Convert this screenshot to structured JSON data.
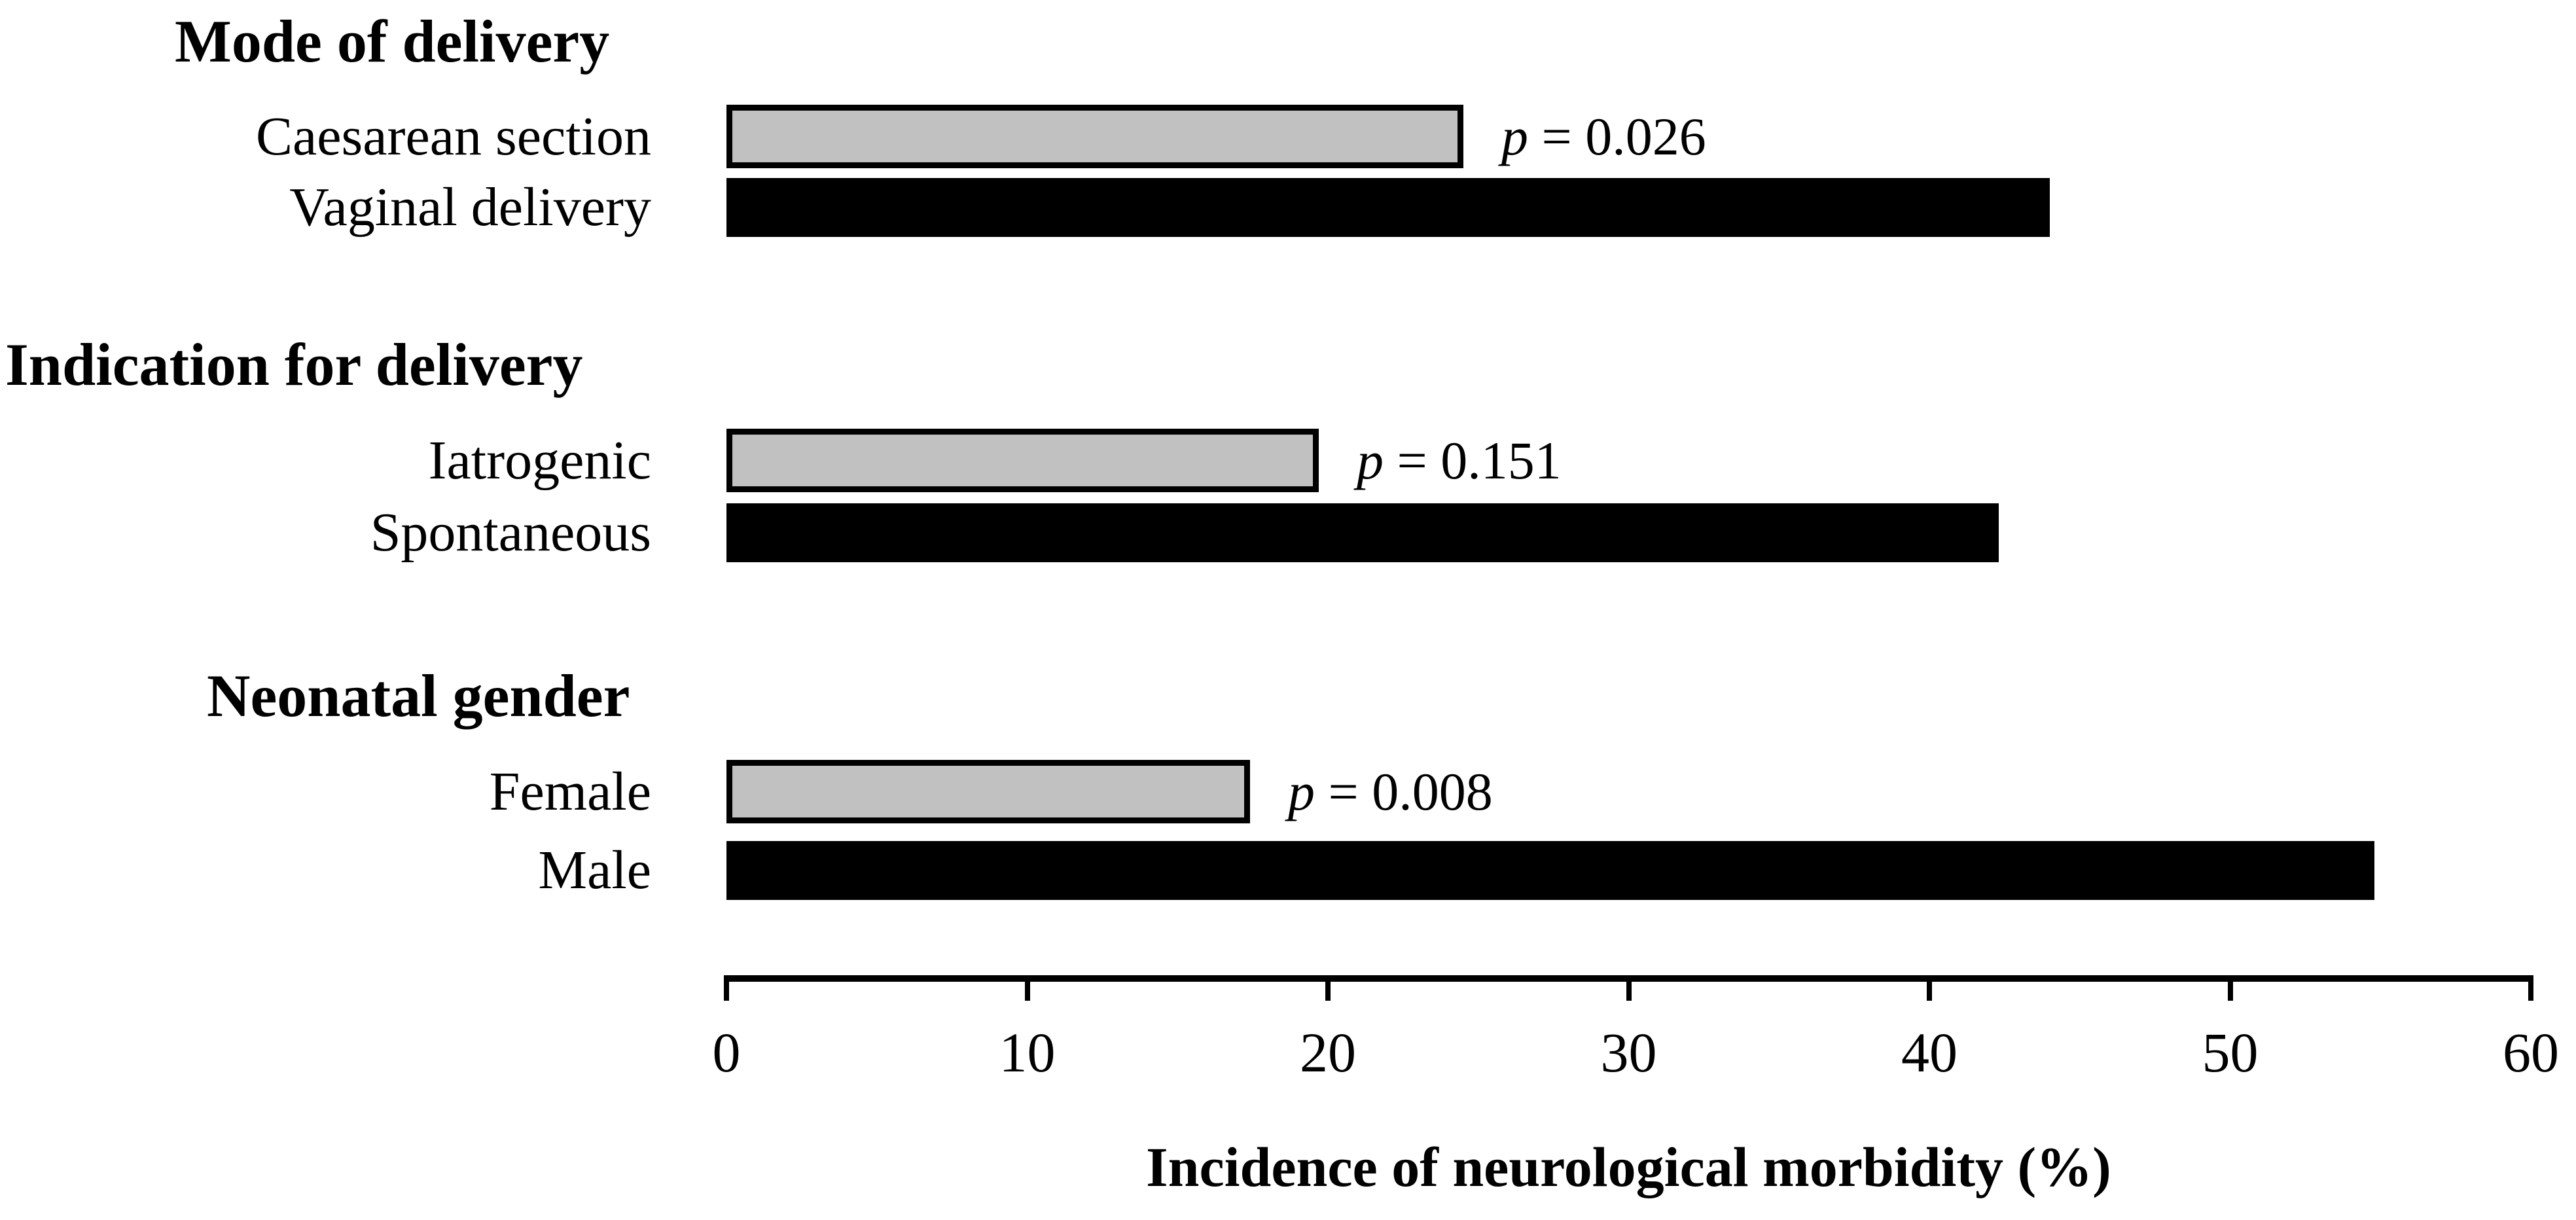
{
  "chart_data": {
    "type": "bar",
    "orientation": "horizontal",
    "title": "",
    "xlabel": "Incidence of neurological morbidity (%)",
    "ylabel": "",
    "xlim": [
      0,
      60
    ],
    "xticks": [
      0,
      10,
      20,
      30,
      40,
      50,
      60
    ],
    "grid": false,
    "legend_position": "none",
    "colors": {
      "gray_bar_fill": "#c1c1c1",
      "bar_outline": "#000000",
      "black_bar_fill": "#000000",
      "text": "#000000"
    },
    "groups": [
      {
        "heading": "Mode of delivery",
        "p_value": "p = 0.026",
        "bars": [
          {
            "label": "Caesarean section",
            "value": 24.5,
            "style": "gray"
          },
          {
            "label": "Vaginal delivery",
            "value": 44.0,
            "style": "black"
          }
        ]
      },
      {
        "heading": "Indication for delivery",
        "p_value": "p = 0.151",
        "bars": [
          {
            "label": "Iatrogenic",
            "value": 19.7,
            "style": "gray"
          },
          {
            "label": "Spontaneous",
            "value": 42.3,
            "style": "black"
          }
        ]
      },
      {
        "heading": "Neonatal gender",
        "p_value": "p = 0.008",
        "bars": [
          {
            "label": "Female",
            "value": 17.4,
            "style": "gray"
          },
          {
            "label": "Male",
            "value": 54.8,
            "style": "black"
          }
        ]
      }
    ]
  }
}
